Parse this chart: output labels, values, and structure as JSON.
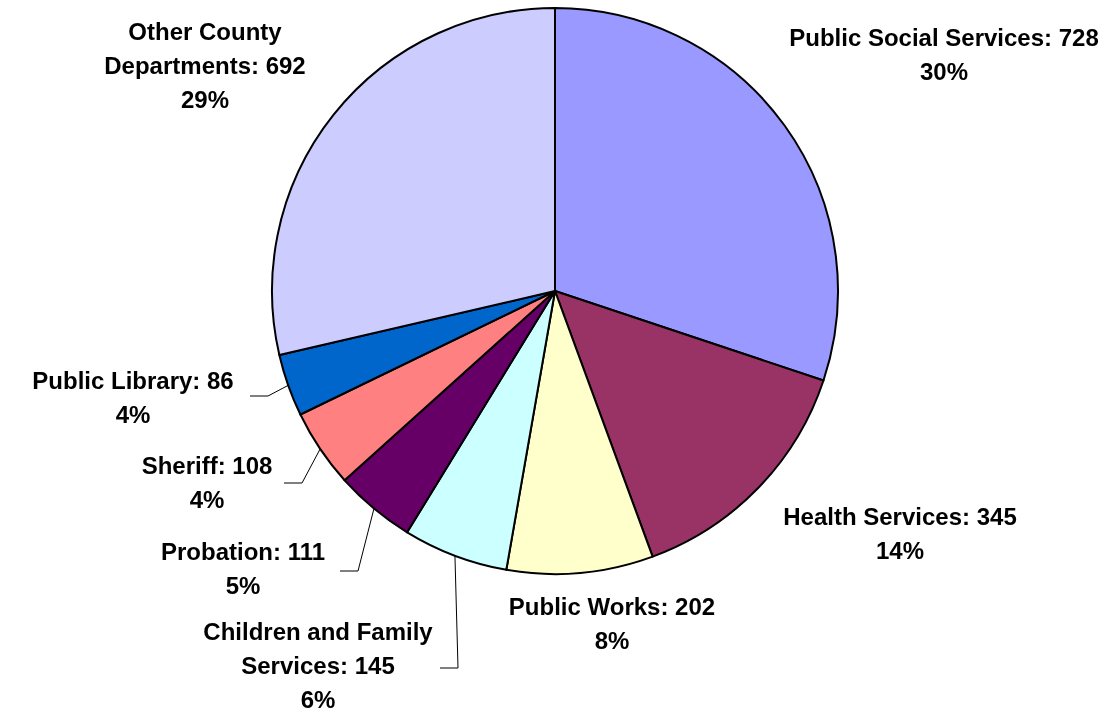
{
  "chart_data": {
    "type": "pie",
    "categories": [
      "Public Social Services",
      "Health Services",
      "Public Works",
      "Children and Family Services",
      "Probation",
      "Sheriff",
      "Public Library",
      "Other County Departments"
    ],
    "values": [
      728,
      345,
      202,
      145,
      111,
      108,
      86,
      692
    ],
    "colors": [
      "#9999ff",
      "#993366",
      "#ffffcc",
      "#ccffff",
      "#660066",
      "#ff8080",
      "#0066cc",
      "#ccccff"
    ],
    "value_labels": [
      "728\n30%",
      "345\n14%",
      "202\n8%",
      "145\n6%",
      "111\n5%",
      "108\n4%",
      "86\n4%",
      "692\n29%"
    ]
  }
}
